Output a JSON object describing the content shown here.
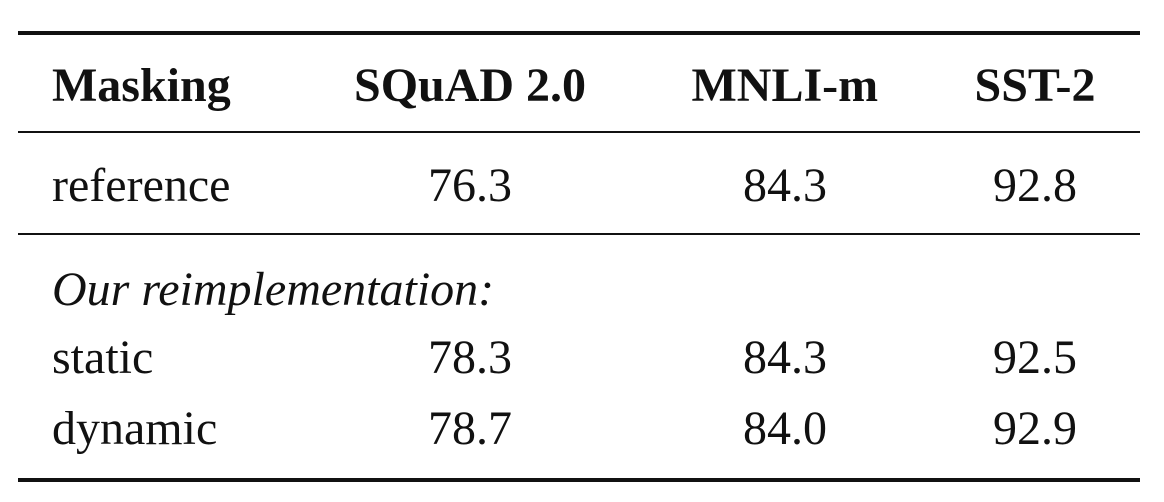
{
  "table": {
    "header": [
      "Masking",
      "SQuAD 2.0",
      "MNLI-m",
      "SST-2"
    ],
    "rows": [
      [
        "reference",
        "76.3",
        "84.3",
        "92.8"
      ]
    ],
    "section": {
      "label": "Our reimplementation:",
      "rows": [
        [
          "static",
          "78.3",
          "84.3",
          "92.5"
        ],
        [
          "dynamic",
          "78.7",
          "84.0",
          "92.9"
        ]
      ]
    }
  }
}
